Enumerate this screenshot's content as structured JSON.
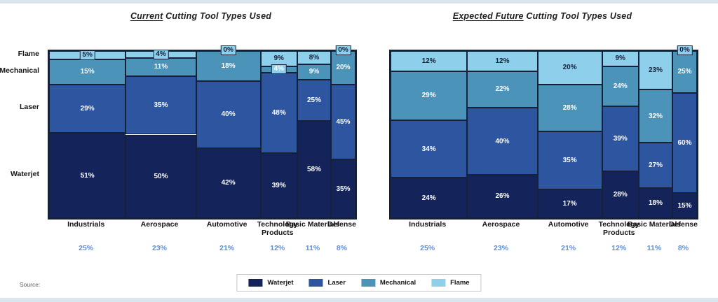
{
  "titles": {
    "left": {
      "emphasis": "Current",
      "rest": " Cutting Tool Types Used"
    },
    "right": {
      "emphasis": "Expected Future",
      "rest": " Cutting Tool Types Used"
    }
  },
  "colors": {
    "waterjet": "#14235a",
    "laser": "#2d55a0",
    "mechanical": "#4c93ba",
    "flame": "#8ecfeb",
    "cell_border": "#152138",
    "label_dark": "#152138",
    "label_light": "#ffffff",
    "column_total_blue": "#5e8fd5",
    "edge_strip": "#dbe5f0"
  },
  "y_axis_labels": [
    "Flame",
    "Mechanical",
    "Laser",
    "Waterjet"
  ],
  "chart_data": [
    {
      "type": "marimekko",
      "title": "Current Cutting Tool Types Used",
      "categories": [
        "Industrials",
        "Aerospace",
        "Automotive",
        "Technology Products",
        "Basic Materials",
        "Defense"
      ],
      "col_widths_pct": [
        25,
        23,
        21,
        12,
        11,
        8
      ],
      "column_total_labels": [
        "25%",
        "23%",
        "21%",
        "12%",
        "11%",
        "8%"
      ],
      "series": [
        {
          "name": "Waterjet",
          "values": [
            51,
            50,
            42,
            39,
            58,
            35
          ]
        },
        {
          "name": "Laser",
          "values": [
            29,
            35,
            40,
            48,
            25,
            45
          ]
        },
        {
          "name": "Mechanical",
          "values": [
            15,
            11,
            18,
            4,
            9,
            20
          ]
        },
        {
          "name": "Flame",
          "values": [
            5,
            4,
            0,
            9,
            8,
            0
          ]
        }
      ]
    },
    {
      "type": "marimekko",
      "title": "Expected Future Cutting Tool Types Used",
      "categories": [
        "Industrials",
        "Aerospace",
        "Automotive",
        "Technology Products",
        "Basic Materials",
        "Defense"
      ],
      "col_widths_pct": [
        25,
        23,
        21,
        12,
        11,
        8
      ],
      "column_total_labels": [
        "25%",
        "23%",
        "21%",
        "12%",
        "11%",
        "8%"
      ],
      "series": [
        {
          "name": "Waterjet",
          "values": [
            24,
            26,
            17,
            28,
            18,
            15
          ]
        },
        {
          "name": "Laser",
          "values": [
            34,
            40,
            35,
            39,
            27,
            60
          ]
        },
        {
          "name": "Mechanical",
          "values": [
            29,
            22,
            28,
            24,
            32,
            25
          ]
        },
        {
          "name": "Flame",
          "values": [
            12,
            12,
            20,
            9,
            23,
            0
          ]
        }
      ]
    }
  ],
  "legend": {
    "items": [
      {
        "label": "Waterjet",
        "color": "#14235a"
      },
      {
        "label": "Laser",
        "color": "#2d55a0"
      },
      {
        "label": "Mechanical",
        "color": "#4c93ba"
      },
      {
        "label": "Flame",
        "color": "#8ecfeb"
      }
    ]
  },
  "source_label": "Source:"
}
